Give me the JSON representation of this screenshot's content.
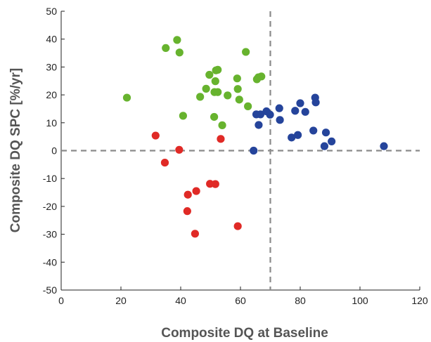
{
  "chart_data": {
    "type": "scatter",
    "title": "",
    "xlabel": "Composite DQ at Baseline",
    "ylabel": "Composite DQ SPC [%/yr]",
    "xlim": [
      0,
      120
    ],
    "ylim": [
      -50,
      50
    ],
    "xticks": [
      0,
      20,
      40,
      60,
      80,
      100,
      120
    ],
    "yticks": [
      -50,
      -40,
      -30,
      -20,
      -10,
      0,
      10,
      20,
      30,
      40,
      50
    ],
    "grid": false,
    "legend": "none",
    "reference_lines": [
      {
        "orientation": "vertical",
        "value": 70,
        "style": "dashed",
        "color": "#8a8a8a"
      },
      {
        "orientation": "horizontal",
        "value": 0,
        "style": "dashed",
        "color": "#8a8a8a"
      }
    ],
    "series": [
      {
        "color": "#67b32e",
        "points": [
          [
            22,
            19
          ],
          [
            35,
            36.8
          ],
          [
            38.8,
            39.7
          ],
          [
            39.6,
            35.2
          ],
          [
            40.8,
            12.5
          ],
          [
            46.5,
            19.3
          ],
          [
            48.5,
            22.2
          ],
          [
            49.6,
            27.2
          ],
          [
            51.3,
            21
          ],
          [
            51.6,
            24.9
          ],
          [
            51.8,
            28.8
          ],
          [
            52.4,
            29
          ],
          [
            51.2,
            12.1
          ],
          [
            52.4,
            21
          ],
          [
            53.9,
            9.1
          ],
          [
            55.7,
            19.8
          ],
          [
            58.9,
            25.9
          ],
          [
            59.1,
            22.1
          ],
          [
            59.6,
            18.3
          ],
          [
            61.8,
            35.4
          ],
          [
            62.5,
            15.9
          ],
          [
            65.5,
            25.6
          ],
          [
            66,
            26.3
          ],
          [
            67,
            26.6
          ]
        ]
      },
      {
        "color": "#e02a26",
        "points": [
          [
            31.6,
            5.4
          ],
          [
            34.7,
            -4.3
          ],
          [
            39.5,
            0.3
          ],
          [
            42.2,
            -21.7
          ],
          [
            42.4,
            -15.8
          ],
          [
            45.2,
            -14.5
          ],
          [
            44.8,
            -29.8
          ],
          [
            49.8,
            -11.9
          ],
          [
            51.6,
            -12
          ],
          [
            53.4,
            4.2
          ],
          [
            59.1,
            -27.1
          ]
        ]
      },
      {
        "color": "#25449b",
        "points": [
          [
            64.4,
            0
          ],
          [
            65.3,
            13
          ],
          [
            66.1,
            9.2
          ],
          [
            66.7,
            13
          ],
          [
            68.7,
            14.1
          ],
          [
            69.9,
            12.9
          ],
          [
            73,
            15.2
          ],
          [
            73.2,
            11
          ],
          [
            77.1,
            4.7
          ],
          [
            78.3,
            14.3
          ],
          [
            79.2,
            5.6
          ],
          [
            80,
            17
          ],
          [
            81.7,
            13.9
          ],
          [
            84.4,
            7.2
          ],
          [
            85,
            19
          ],
          [
            85.2,
            17.3
          ],
          [
            88.1,
            1.6
          ],
          [
            88.6,
            6.5
          ],
          [
            90.5,
            3.3
          ],
          [
            108,
            1.6
          ]
        ]
      }
    ]
  }
}
